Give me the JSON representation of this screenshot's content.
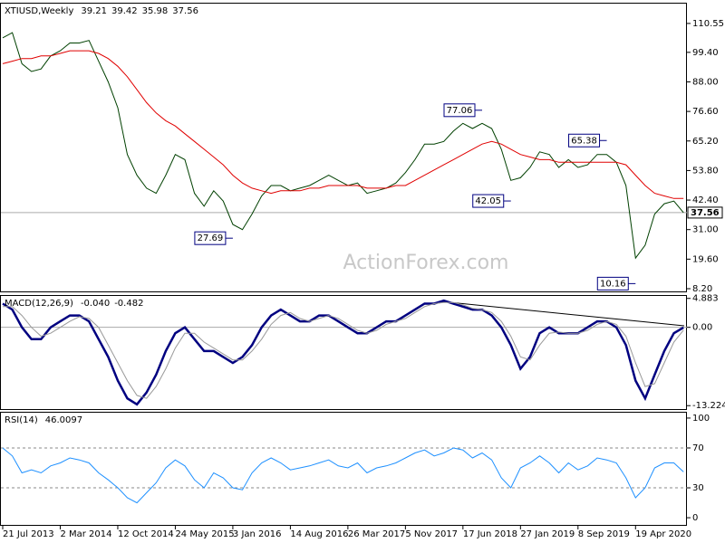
{
  "chart_data": [
    {
      "type": "line",
      "title": "XTIUSD,Weekly",
      "ohlc": [
        39.21,
        39.42,
        35.98,
        37.56
      ],
      "categories": [
        "21 Jul 2013",
        null,
        null,
        null,
        null,
        null,
        "2 Mar 2014",
        null,
        null,
        null,
        null,
        null,
        "12 Oct 2014",
        null,
        null,
        null,
        null,
        null,
        "24 May 2015",
        null,
        null,
        null,
        null,
        null,
        "3 Jan 2016",
        null,
        null,
        null,
        null,
        null,
        "14 Aug 2016",
        null,
        null,
        null,
        null,
        null,
        "26 Mar 2017",
        null,
        null,
        null,
        null,
        null,
        "5 Nov 2017",
        null,
        null,
        null,
        null,
        null,
        "17 Jun 2018",
        null,
        null,
        null,
        null,
        null,
        "27 Jan 2019",
        null,
        null,
        null,
        null,
        null,
        "8 Sep 2019",
        null,
        null,
        null,
        null,
        null,
        "19 Apr 2020",
        null,
        null,
        null,
        null,
        null
      ],
      "series": [
        {
          "name": "XTIUSD",
          "color": "#004000",
          "values": [
            105,
            107,
            95,
            92,
            93,
            98,
            100,
            103,
            103,
            104,
            96,
            88,
            78,
            60,
            52,
            47,
            45,
            52,
            60,
            58,
            45,
            40,
            46,
            42,
            33,
            31,
            37,
            44,
            48,
            48,
            46,
            47,
            48,
            50,
            52,
            50,
            48,
            49,
            45,
            46,
            47,
            49,
            53,
            58,
            64,
            64,
            65,
            69,
            72,
            70,
            72,
            70,
            62,
            50,
            51,
            55,
            61,
            60,
            55,
            58,
            55,
            56,
            60,
            60,
            57,
            48,
            20,
            25,
            37,
            41,
            42,
            37.56
          ]
        },
        {
          "name": "MA",
          "color": "#e00000",
          "values": [
            95,
            96,
            97,
            97,
            98,
            98,
            99,
            100,
            100,
            100,
            99,
            97,
            94,
            90,
            85,
            80,
            76,
            73,
            71,
            68,
            65,
            62,
            59,
            56,
            52,
            49,
            47,
            46,
            45,
            46,
            46,
            46,
            47,
            47,
            48,
            48,
            48,
            48,
            47,
            47,
            47,
            48,
            48,
            50,
            52,
            54,
            56,
            58,
            60,
            62,
            64,
            65,
            64,
            62,
            60,
            59,
            58,
            58,
            57,
            57,
            57,
            57,
            57,
            57,
            57,
            56,
            52,
            48,
            45,
            44,
            43,
            43
          ]
        }
      ],
      "annotations": [
        {
          "value": 27.69,
          "index": 24
        },
        {
          "value": 77.06,
          "index": 50
        },
        {
          "value": 42.05,
          "index": 53
        },
        {
          "value": 65.38,
          "index": 63
        },
        {
          "value": 10.16,
          "index": 66
        }
      ],
      "watermark": "ActionForex.com",
      "ylim": [
        7.15,
        118.2
      ],
      "yticks": [
        {
          "value": 8.2,
          "label": "8.20"
        },
        {
          "value": 19.6,
          "label": "19.60"
        },
        {
          "value": 31,
          "label": "31.00"
        },
        {
          "value": 42.4,
          "label": "42.40"
        },
        {
          "value": 53.8,
          "label": "53.80"
        },
        {
          "value": 65.2,
          "label": "65.20"
        },
        {
          "value": 76.6,
          "label": "76.60"
        },
        {
          "value": 88,
          "label": "88.00"
        },
        {
          "value": 99.4,
          "label": "99.40"
        },
        110.55
      ]
    },
    {
      "type": "line",
      "title": "MACD(12,26,9)",
      "readout": [
        {
          "value": -0.04,
          "label": "-0.040"
        },
        {
          "value": -0.482,
          "label": "-0.482"
        }
      ],
      "series": [
        {
          "name": "MACD",
          "color": "#000080",
          "values": [
            4,
            3,
            0,
            -2,
            -2,
            0,
            1,
            2,
            2,
            1,
            -2,
            -5,
            -9,
            -12,
            -13,
            -11,
            -8,
            -4,
            -1,
            0,
            -2,
            -4,
            -4,
            -5,
            -6,
            -5,
            -3,
            0,
            2,
            3,
            2,
            1,
            1,
            2,
            2,
            1,
            0,
            -1,
            -1,
            0,
            1,
            1,
            2,
            3,
            4,
            4,
            4.5,
            4,
            3.5,
            3,
            3,
            2,
            0,
            -3,
            -7,
            -5,
            -1,
            0,
            -1,
            -1,
            -1,
            0,
            1,
            1,
            0,
            -3,
            -9,
            -12,
            -8,
            -4,
            -1,
            -0.04
          ]
        },
        {
          "name": "Signal",
          "color": "#999999",
          "values": [
            3.5,
            3.5,
            2,
            0,
            -1.5,
            -1,
            0,
            1,
            1.8,
            1.5,
            0,
            -3,
            -6,
            -9,
            -11.5,
            -12,
            -10,
            -7,
            -3.5,
            -1,
            -1,
            -2.5,
            -3.5,
            -4.5,
            -5.5,
            -5.5,
            -4,
            -2,
            0.5,
            2,
            2.5,
            1.5,
            1,
            1.5,
            2,
            1.5,
            0.5,
            -0.5,
            -1,
            -0.5,
            0.5,
            1,
            1.5,
            2.5,
            3.5,
            4,
            4.2,
            4.2,
            3.8,
            3.2,
            3,
            2.5,
            1,
            -1.5,
            -5,
            -5.5,
            -3,
            -1,
            -0.8,
            -1,
            -1,
            -0.5,
            0.5,
            1,
            0.5,
            -1.5,
            -6,
            -10,
            -9.5,
            -6,
            -2.5,
            -0.482
          ]
        }
      ],
      "ylim": [
        -13.8,
        5.3
      ],
      "yticks": [
        -13.224,
        {
          "value": 0,
          "label": "0.00"
        },
        4.883
      ]
    },
    {
      "type": "line",
      "title": "RSI(14)",
      "readout": [
        46.0097
      ],
      "series": [
        {
          "name": "RSI",
          "color": "#1e90ff",
          "values": [
            70,
            62,
            45,
            48,
            45,
            52,
            55,
            60,
            58,
            55,
            45,
            38,
            30,
            20,
            15,
            25,
            35,
            50,
            58,
            52,
            38,
            30,
            45,
            40,
            30,
            28,
            45,
            55,
            60,
            55,
            48,
            50,
            52,
            55,
            58,
            52,
            50,
            55,
            45,
            50,
            52,
            55,
            60,
            65,
            68,
            62,
            65,
            70,
            68,
            60,
            65,
            58,
            40,
            30,
            50,
            55,
            62,
            55,
            45,
            55,
            48,
            52,
            60,
            58,
            55,
            40,
            20,
            30,
            50,
            55,
            55,
            46.0097
          ]
        }
      ],
      "levels": [
        30,
        70
      ],
      "ylim": [
        -7.2,
        105.4
      ],
      "yticks": [
        0,
        30,
        70,
        100
      ]
    }
  ]
}
